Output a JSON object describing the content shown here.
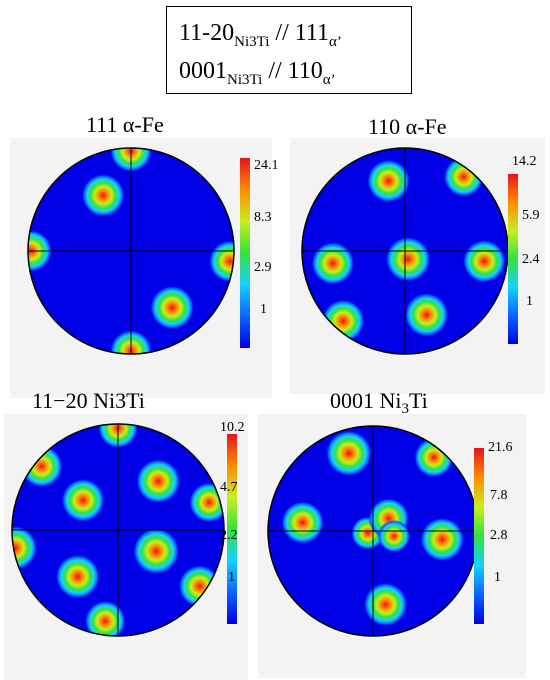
{
  "header": {
    "line1": {
      "a": "11-20",
      "a_sub": "Ni3Ti",
      "b": "// 111",
      "b_sub": "α’"
    },
    "line2": {
      "a": "0001",
      "a_sub": "Ni3Ti",
      "b": "// 110",
      "b_sub": "α’"
    }
  },
  "colormap": [
    "#0000e6",
    "#0a64ff",
    "#15d2ff",
    "#35e23c",
    "#c8ee1e",
    "#ff8a00",
    "#e4141e"
  ],
  "panels": [
    {
      "id": "111-alpha-fe",
      "title": "111 α-Fe",
      "ticks": [
        "24.1",
        "8.3",
        "2.9",
        "1"
      ],
      "peaks": [
        {
          "u": -0.27,
          "v": 0.54,
          "i": 0.9
        },
        {
          "u": 0.0,
          "v": -0.97,
          "i": 0.85
        },
        {
          "u": -0.97,
          "v": 0.0,
          "i": 0.85
        },
        {
          "u": 0.96,
          "v": -0.1,
          "i": 0.85
        },
        {
          "u": 0.0,
          "v": 0.97,
          "i": 0.85
        },
        {
          "u": 0.4,
          "v": -0.55,
          "i": 0.95
        }
      ]
    },
    {
      "id": "110-alpha-fe",
      "title": "110 α-Fe",
      "ticks": [
        "14.2",
        "5.9",
        "2.4",
        "1"
      ],
      "peaks": [
        {
          "u": -0.16,
          "v": 0.68,
          "i": 0.9
        },
        {
          "u": 0.57,
          "v": 0.72,
          "i": 0.75
        },
        {
          "u": -0.7,
          "v": -0.12,
          "i": 0.9
        },
        {
          "u": 0.03,
          "v": -0.08,
          "i": 1.0
        },
        {
          "u": 0.77,
          "v": -0.1,
          "i": 0.9
        },
        {
          "u": -0.6,
          "v": -0.68,
          "i": 0.9
        },
        {
          "u": 0.21,
          "v": -0.62,
          "i": 0.95
        }
      ]
    },
    {
      "id": "11-20-ni3ti",
      "title": "11−20",
      "title_sub": "Ni3Ti",
      "ticks": [
        "10.2",
        "4.7",
        "2.2",
        "1"
      ],
      "peaks": [
        {
          "u": 0.0,
          "v": 0.96,
          "i": 0.7
        },
        {
          "u": -0.72,
          "v": 0.6,
          "i": 0.8
        },
        {
          "u": 0.38,
          "v": 0.46,
          "i": 0.9
        },
        {
          "u": -0.33,
          "v": 0.28,
          "i": 0.85
        },
        {
          "u": 0.86,
          "v": 0.26,
          "i": 0.7
        },
        {
          "u": -0.97,
          "v": -0.17,
          "i": 0.9
        },
        {
          "u": 0.36,
          "v": -0.2,
          "i": 1.0
        },
        {
          "u": -0.38,
          "v": -0.44,
          "i": 0.9
        },
        {
          "u": 0.77,
          "v": -0.53,
          "i": 0.8
        },
        {
          "u": -0.12,
          "v": -0.86,
          "i": 0.75
        }
      ]
    },
    {
      "id": "0001-ni3ti",
      "title": "0001 Ni",
      "title_sub": "3",
      "title_tail": "Ti",
      "ticks": [
        "21.6",
        "7.8",
        "2.8",
        "1"
      ],
      "peaks": [
        {
          "u": -0.23,
          "v": 0.74,
          "i": 1.0
        },
        {
          "u": 0.58,
          "v": 0.7,
          "i": 0.7
        },
        {
          "u": -0.67,
          "v": 0.08,
          "i": 0.85
        },
        {
          "u": -0.05,
          "v": -0.02,
          "i": 0.4
        },
        {
          "u": 0.15,
          "v": 0.12,
          "i": 0.75
        },
        {
          "u": 0.2,
          "v": -0.05,
          "i": 0.35
        },
        {
          "u": 0.66,
          "v": -0.08,
          "i": 0.9
        },
        {
          "u": 0.12,
          "v": -0.7,
          "i": 0.9
        }
      ]
    }
  ]
}
